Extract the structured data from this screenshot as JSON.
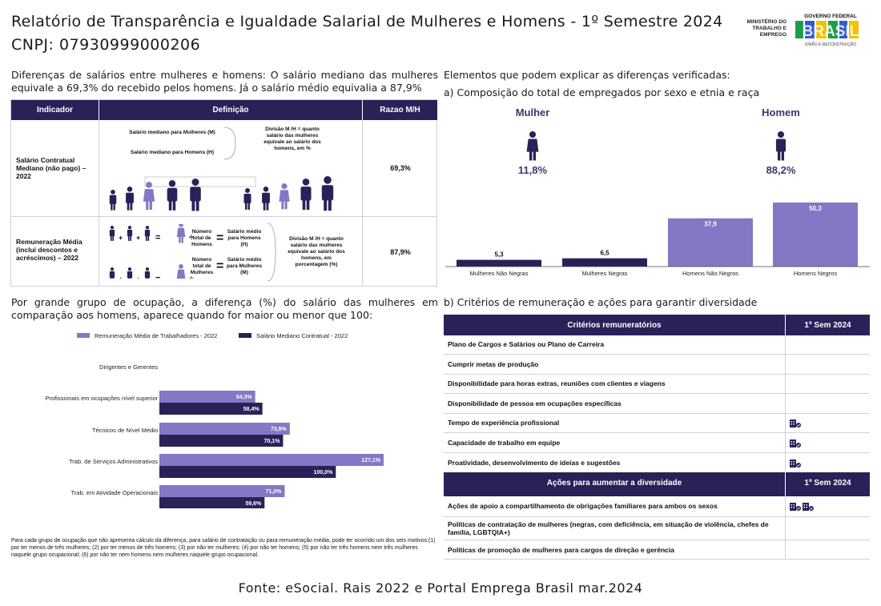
{
  "header": {
    "title": "Relatório de Transparência e Igualdade Salarial de Mulheres e Homens - 1º Semestre 2024",
    "cnpj": "CNPJ: 07930999000206",
    "ministry": "MINISTÉRIO DO TRABALHO E EMPREGO",
    "gov_label": "GOVERNO FEDERAL",
    "gov_brand": "BRASIL",
    "gov_slogan": "UNIÃO E RECONSTRUÇÃO"
  },
  "intro_left": "Diferenças de salários entre mulheres e homens: O salário mediano das mulheres equivale a 69,3% do recebido pelos homens. Já o salário médio equivalia a 87,9%",
  "intro_right": "Elementos que podem explicar as diferenças verificadas:",
  "section_a": "a) Composição do total de empregados por sexo e etnia e raça",
  "definition_table": {
    "headers": [
      "Indicador",
      "Definição",
      "Razao M/H"
    ],
    "row1": {
      "label": "Salário Contratual Mediano (não pago) – 2022",
      "value": "69,3%",
      "def_women": "Salário mediano para Mulheres (M)",
      "def_men": "Salário mediano para Homens (H)",
      "def_note": "Divisão M /H = quanto salário das mulheres equivale ao salário dos homens, em %"
    },
    "row2": {
      "label": "Remuneração Média (inclui descontos e acréscimos) – 2022",
      "value": "87,9%",
      "total_men": "Número total de Homens",
      "total_women": "Número total de Mulheres",
      "avg_men": "Salário médio para Homens (H)",
      "avg_women": "Salário médio para Mulheres (M)",
      "def_note": "Divisão M /H = quanto salário das mulheres equivale ao salário dos homens, em porcentagem (%)"
    }
  },
  "composition": {
    "woman_label": "Mulher",
    "woman_pct": "11,8%",
    "man_label": "Homem",
    "man_pct": "88,2%"
  },
  "chart_data": [
    {
      "type": "bar",
      "categories": [
        "Mulheres Não Negras",
        "Mulheres Negras",
        "Homens Não Negros",
        "Homens Negros"
      ],
      "values": [
        5.3,
        6.5,
        37.9,
        50.3
      ],
      "value_labels": [
        "5,3",
        "6,5",
        "37,9",
        "50,3"
      ],
      "colors": [
        "#2b2159",
        "#2b2159",
        "#8477c4",
        "#8477c4"
      ],
      "ylim": [
        0,
        50.3
      ]
    },
    {
      "type": "bar",
      "orientation": "horizontal",
      "categories": [
        "Dirigentes e Gerentes",
        "Profissionais em ocupações nível superior",
        "Técnicos de Nível Médio",
        "Trab. de Serviços Administrativos",
        "Trab. em Atividade Operacionais"
      ],
      "series": [
        {
          "name": "Remuneração Média de Trabalhadores - 2022",
          "values": [
            null,
            54.3,
            73.9,
            127.1,
            71.0
          ],
          "labels": [
            "",
            "54,3%",
            "73,9%",
            "127,1%",
            "71,0%"
          ],
          "color": "#8477c4"
        },
        {
          "name": "Salário Mediano Contratual - 2022",
          "values": [
            null,
            58.4,
            70.1,
            100.0,
            59.6
          ],
          "labels": [
            "",
            "58,4%",
            "70,1%",
            "100,0%",
            "59,6%"
          ],
          "color": "#2b2159"
        }
      ],
      "legend": "top-left"
    }
  ],
  "occupation_title": "Por grande grupo de ocupação, a diferença (%) do salário das mulheres em comparação aos homens, aparece quando for maior ou menor que 100:",
  "section_b": "b) Critérios de remuneração e ações para garantir diversidade",
  "criteria": {
    "header": "Critérios remuneratórios",
    "col": "1º Sem 2024",
    "rows": [
      {
        "label": "Plano de Cargos e Salários ou Plano de Carreira",
        "icons": 0
      },
      {
        "label": "Cumprir metas de produção",
        "icons": 0
      },
      {
        "label": "Disponibilidade para horas extras, reuniões com clientes e viagens",
        "icons": 0
      },
      {
        "label": "Disponibilidade de pessoa em ocupações específicas",
        "icons": 0
      },
      {
        "label": "Tempo de experiência profissional",
        "icons": 1
      },
      {
        "label": "Capacidade de trabalho em equipe",
        "icons": 1
      },
      {
        "label": "Proatividade, desenvolvimento de ideias e sugestões",
        "icons": 1
      }
    ]
  },
  "actions": {
    "header": "Ações para aumentar a diversidade",
    "col": "1º Sem 2024",
    "rows": [
      {
        "label": "Ações de apoio a compartilhamento de obrigações familiares para ambos os sexos",
        "icons": 2
      },
      {
        "label": "Políticas de contratação de mulheres (negras, com deficiência, em situação de violência, chefes de família, LGBTQIA+)",
        "icons": 0
      },
      {
        "label": "Políticas de promoção de mulheres para cargos de direção e gerência",
        "icons": 0
      }
    ]
  },
  "footnote": "Para cada grupo de ocupação que não apresenta cálculo da diferença, para salário de contratação ou para remuneração média, pode ter ocorrido um dos seis motivos:(1) por ter menos de três mulheres; (2) por ter menos de três homens; (3) por não ter mulheres; (4) por não ter homens; (5) por não ter três homens nem três mulheres naquele grupo ocupacional; (6) por não ter nem homens nem mulheres naquele grupo ocupacional.",
  "source": "Fonte: eSocial. Rais 2022 e Portal Emprega Brasil mar.2024",
  "colors": {
    "navy": "#2b2159",
    "purple": "#8477c4",
    "accent": "#3e3470"
  }
}
